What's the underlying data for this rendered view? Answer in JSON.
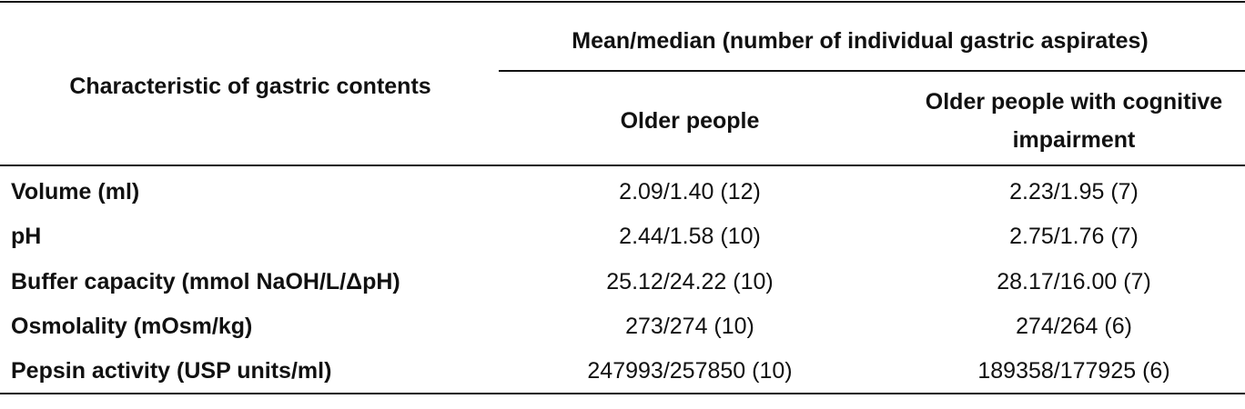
{
  "header": {
    "stub": "Characteristic of gastric contents",
    "group": "Mean/median (number of individual gastric aspirates)",
    "columns": [
      "Older people",
      "Older people with cognitive impairment"
    ]
  },
  "rows": [
    {
      "label": "Volume (ml)",
      "values": [
        "2.09/1.40 (12)",
        "2.23/1.95 (7)"
      ]
    },
    {
      "label": "pH",
      "values": [
        "2.44/1.58 (10)",
        "2.75/1.76 (7)"
      ]
    },
    {
      "label": "Buffer capacity (mmol NaOH/L/ΔpH)",
      "values": [
        "25.12/24.22 (10)",
        "28.17/16.00 (7)"
      ]
    },
    {
      "label": "Osmolality (mOsm/kg)",
      "values": [
        "273/274 (10)",
        "274/264 (6)"
      ]
    },
    {
      "label": "Pepsin activity (USP units/ml)",
      "values": [
        "247993/257850 (10)",
        "189358/177925 (6)"
      ]
    }
  ]
}
